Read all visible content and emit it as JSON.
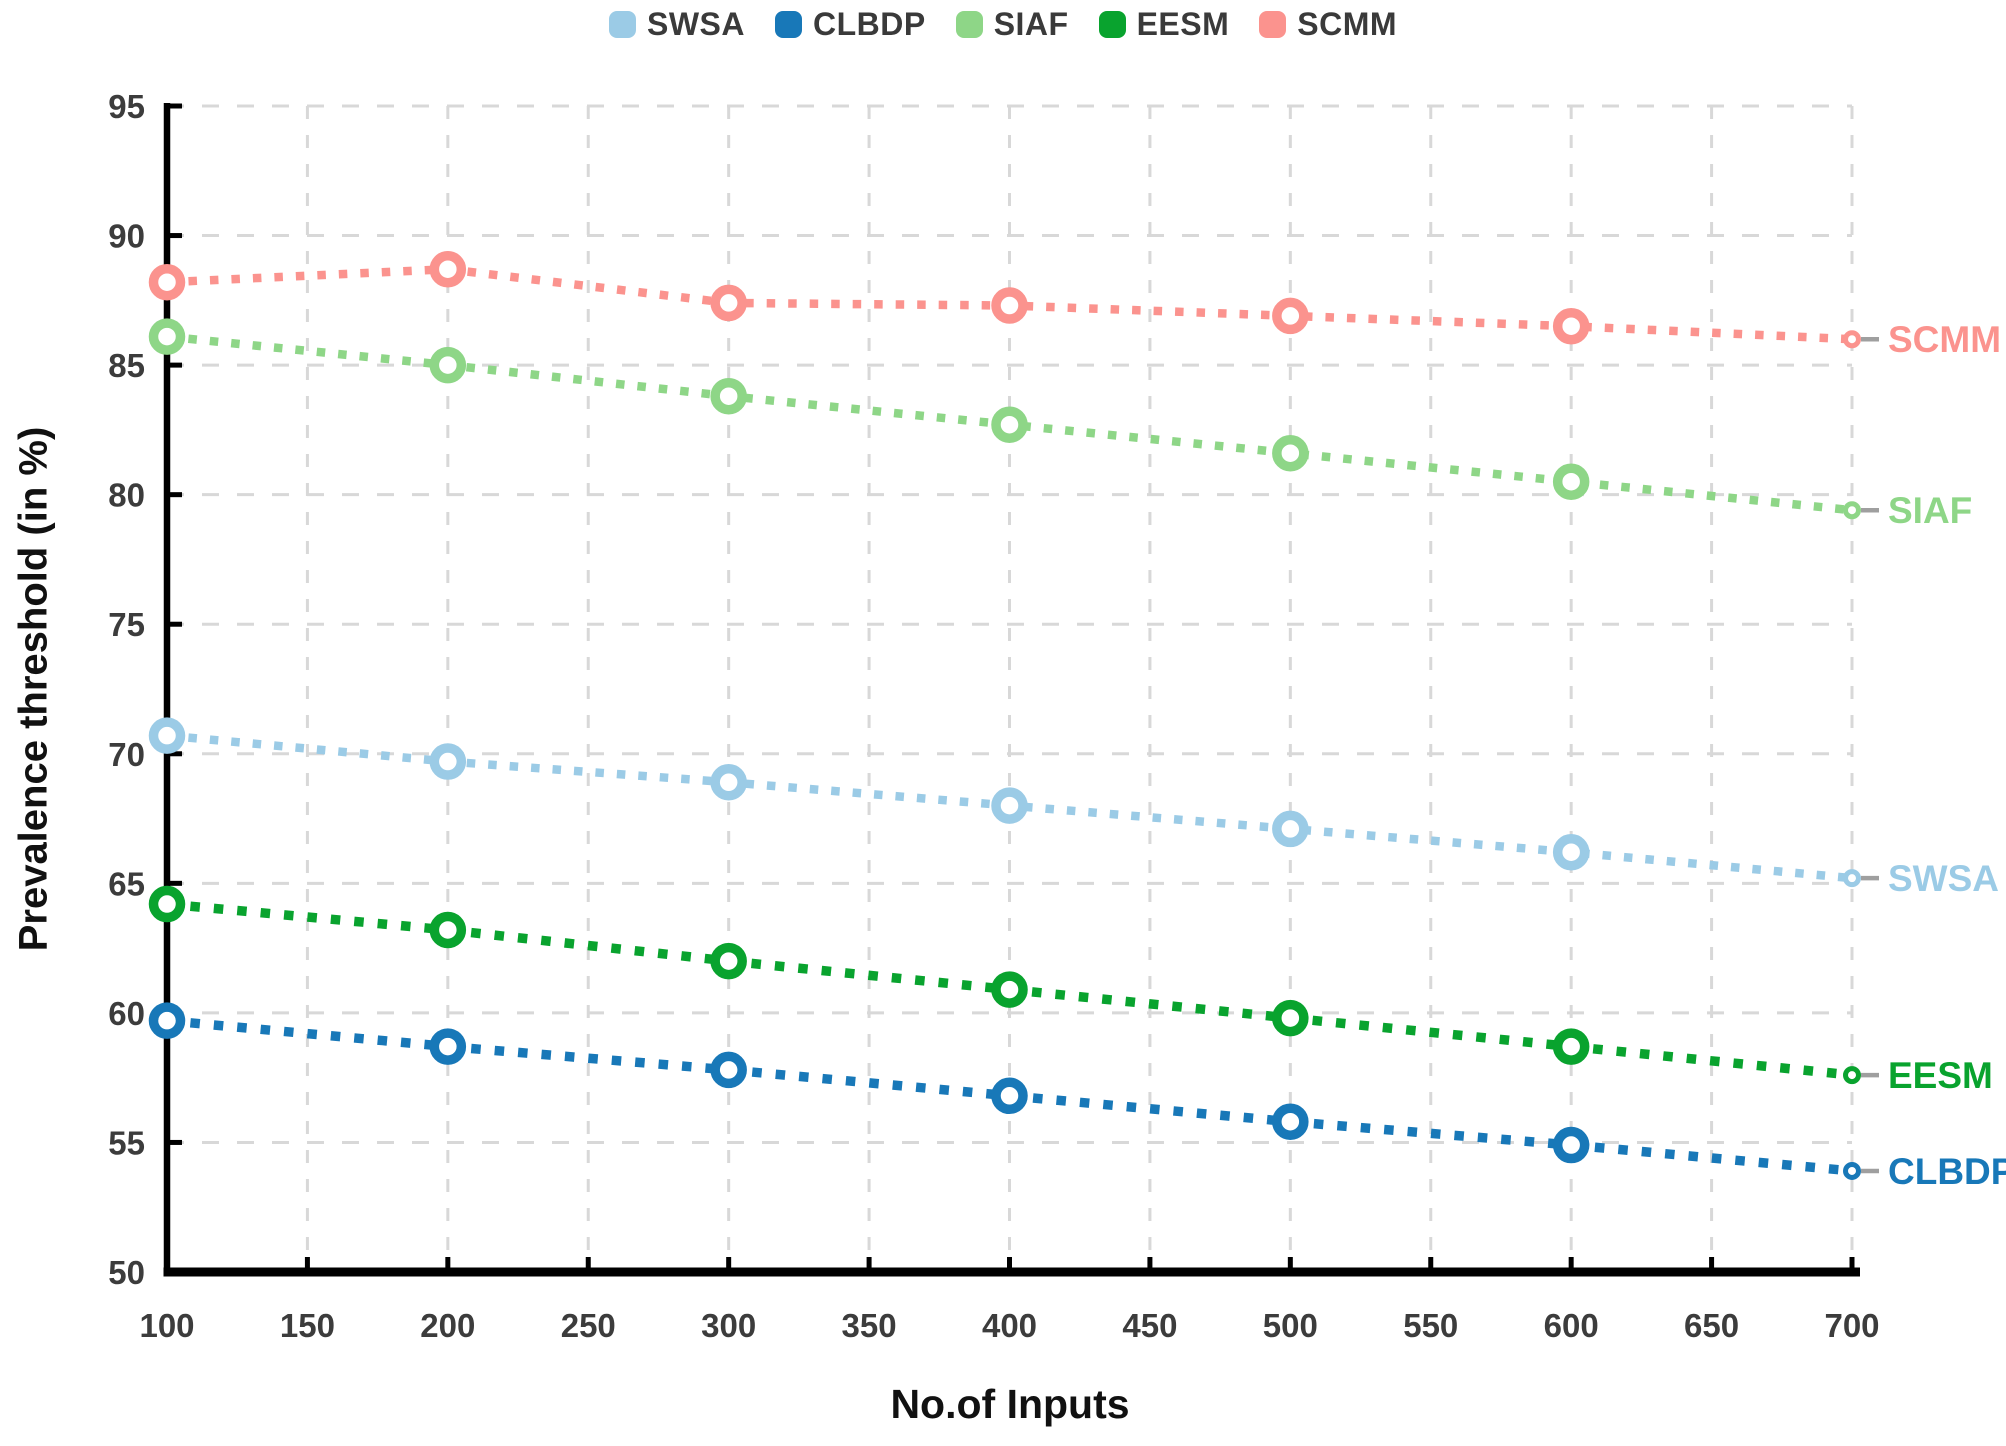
{
  "chart_data": {
    "type": "line",
    "title": "",
    "xlabel": "No.of Inputs",
    "ylabel": "Prevalence threshold (in %)",
    "line_style": "dotted",
    "marker": "open-circle",
    "grid": "dashed-light-gray",
    "legend_position": "top-center",
    "xlim": [
      100,
      700
    ],
    "ylim": [
      50,
      95
    ],
    "x": [
      100,
      200,
      300,
      400,
      500,
      600,
      700
    ],
    "x_ticks": [
      "100",
      "150",
      "200",
      "250",
      "300",
      "350",
      "400",
      "450",
      "500",
      "550",
      "600",
      "650",
      "700"
    ],
    "y_ticks": [
      "50",
      "55",
      "60",
      "65",
      "70",
      "75",
      "80",
      "85",
      "90",
      "95"
    ],
    "series": [
      {
        "name": "SWSA",
        "color": "#9bcbe6",
        "values": [
          70.7,
          69.7,
          68.9,
          68.0,
          67.1,
          66.2,
          65.2
        ]
      },
      {
        "name": "CLBDP",
        "color": "#1878b8",
        "values": [
          59.7,
          58.7,
          57.8,
          56.8,
          55.8,
          54.9,
          53.9
        ]
      },
      {
        "name": "SIAF",
        "color": "#8ed687",
        "values": [
          86.1,
          85.0,
          83.8,
          82.7,
          81.6,
          80.5,
          79.4
        ]
      },
      {
        "name": "EESM",
        "color": "#09a32e",
        "values": [
          64.2,
          63.2,
          62.0,
          60.9,
          59.8,
          58.7,
          57.6
        ]
      },
      {
        "name": "SCMM",
        "color": "#fb938e",
        "values": [
          88.2,
          88.7,
          87.4,
          87.3,
          86.9,
          86.5,
          86.0
        ]
      }
    ],
    "colors": {
      "axis": "#000000",
      "gridline": "#d8d8d8",
      "tick_text": "#3c3c3c",
      "leader_dash": "#9f9f9f",
      "marker_fill": "#ffffff"
    }
  }
}
